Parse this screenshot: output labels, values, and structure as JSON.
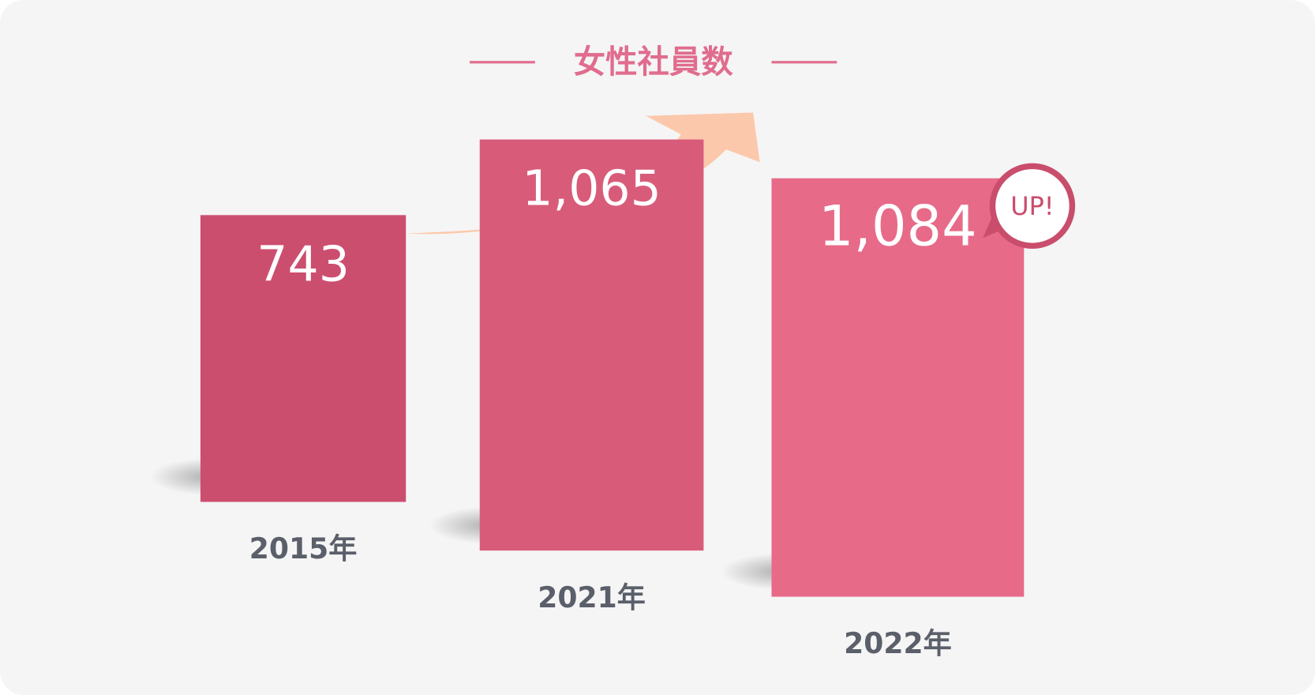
{
  "chart_data": {
    "type": "bar",
    "title": "女性社員数",
    "categories": [
      "2015年",
      "2021年",
      "2022年"
    ],
    "values": [
      743,
      1065,
      1084
    ],
    "value_labels": [
      "743",
      "1,065",
      "1,084"
    ],
    "colors": [
      "#cc4e6e",
      "#d85c7a",
      "#e76a89"
    ],
    "annotation": "UP!"
  }
}
